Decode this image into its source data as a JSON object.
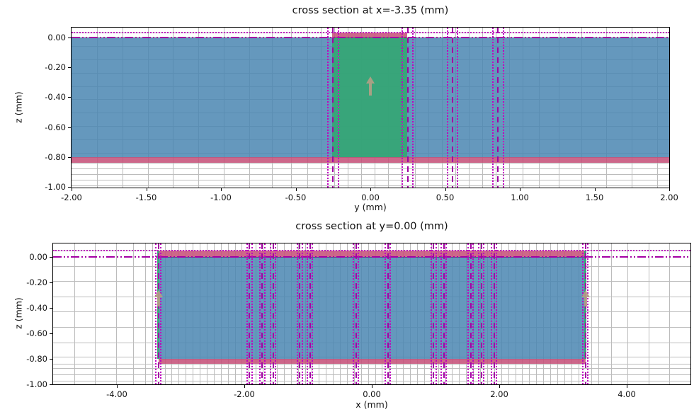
{
  "colors": {
    "grid": "#bcbcbc",
    "magenta_dotted": "#bf00bf",
    "magenta_dashed": "#a300a3",
    "arrow": "rgba(181,160,133,0.9)",
    "tick": "#000000",
    "blue_region": "rgba(74,134,178,0.85)",
    "green_region": "rgba(52,166,116,0.92)",
    "pink_region": "rgba(198,82,122,0.88)"
  },
  "chart_data": [
    {
      "id": "top",
      "type": "area",
      "title": "cross section at x=-3.35 (mm)",
      "xlabel": "y (mm)",
      "ylabel": "z (mm)",
      "xlim": [
        -2.0,
        2.0
      ],
      "zlim": [
        -1.005,
        0.066
      ],
      "grid": "on",
      "xticks": [
        {
          "v": -2.0,
          "label": "-2.00"
        },
        {
          "v": -1.5,
          "label": "-1.50"
        },
        {
          "v": -1.0,
          "label": "-1.00"
        },
        {
          "v": -0.5,
          "label": "-0.50"
        },
        {
          "v": 0.0,
          "label": "0.00"
        },
        {
          "v": 0.5,
          "label": "0.50"
        },
        {
          "v": 1.0,
          "label": "1.00"
        },
        {
          "v": 1.5,
          "label": "1.50"
        },
        {
          "v": 2.0,
          "label": "2.00"
        }
      ],
      "zticks": [
        {
          "v": 0.0,
          "label": "0.00"
        },
        {
          "v": -0.2,
          "label": "-0.20"
        },
        {
          "v": -0.4,
          "label": "-0.40"
        },
        {
          "v": -0.6,
          "label": "-0.60"
        },
        {
          "v": -0.8,
          "label": "-0.80"
        },
        {
          "v": -1.0,
          "label": "-1.00"
        }
      ],
      "grid_x": [
        -1.83,
        -1.66,
        -1.49,
        -1.32,
        -1.15,
        -0.98,
        -0.81,
        -0.66,
        -0.53,
        -0.42,
        -0.33,
        -0.24,
        -0.15,
        -0.06,
        0.03,
        0.12,
        0.21,
        0.3,
        0.39,
        0.48,
        0.57,
        0.66,
        0.75,
        0.84,
        0.93,
        1.02,
        1.13,
        1.26,
        1.41,
        1.58,
        1.75,
        1.92
      ],
      "grid_z": [
        0.033,
        -0.055,
        -0.145,
        -0.235,
        -0.325,
        -0.415,
        -0.505,
        -0.595,
        -0.685,
        -0.775,
        -0.838,
        -0.877,
        -0.915,
        -0.953,
        -0.991
      ],
      "regions": [
        {
          "name": "substrate-blue",
          "x0": -2.0,
          "x1": 2.0,
          "z0": -0.8,
          "z1": 0.0,
          "color": "rgba(74,134,178,0.85)",
          "border_top": "rgba(23,54,84,0.55)"
        },
        {
          "name": "core-green",
          "x0": -0.255,
          "x1": 0.245,
          "z0": -0.8,
          "z1": 0.0,
          "color": "rgba(52,166,116,0.92)",
          "border_top": "rgba(20,110,66,0.6)"
        },
        {
          "name": "metal-pink-top",
          "x0": -0.255,
          "x1": 0.245,
          "z0": 0.0,
          "z1": 0.033,
          "color": "rgba(198,82,122,0.88)"
        },
        {
          "name": "metal-pink-bottom",
          "x0": -2.0,
          "x1": 2.0,
          "z0": -0.84,
          "z1": -0.8,
          "color": "rgba(198,82,122,0.88)"
        }
      ],
      "vlines_dotted": [
        -0.285,
        -0.215,
        0.215,
        0.285,
        0.515,
        0.585,
        0.82,
        0.89
      ],
      "vlines_dashed": [
        -0.25,
        0.25,
        0.55,
        0.855
      ],
      "hlines_dotted": [
        0.033
      ],
      "hlines_dashdotdot": [
        0.0
      ],
      "arrows": [
        {
          "x": 0.0,
          "z_top": -0.26,
          "z_bottom": -0.39
        }
      ]
    },
    {
      "id": "bottom",
      "type": "area",
      "title": "cross section at y=0.00 (mm)",
      "xlabel": "x (mm)",
      "ylabel": "z (mm)",
      "xlim": [
        -5.0,
        5.0
      ],
      "zlim": [
        -1.0,
        0.105
      ],
      "grid": "on",
      "xticks": [
        {
          "v": -4.0,
          "label": "-4.00"
        },
        {
          "v": -2.0,
          "label": "-2.00"
        },
        {
          "v": 0.0,
          "label": "0.00"
        },
        {
          "v": 2.0,
          "label": "2.00"
        },
        {
          "v": 4.0,
          "label": "4.00"
        }
      ],
      "zticks": [
        {
          "v": 0.0,
          "label": "0.00"
        },
        {
          "v": -0.2,
          "label": "-0.20"
        },
        {
          "v": -0.4,
          "label": "-0.40"
        },
        {
          "v": -0.6,
          "label": "-0.60"
        },
        {
          "v": -0.8,
          "label": "-0.80"
        },
        {
          "v": -1.0,
          "label": "-1.00"
        }
      ],
      "grid_x": [
        -4.67,
        -4.34,
        -4.01,
        -3.75,
        -3.56,
        -3.44,
        -3.25,
        -3.14,
        -3.03,
        -2.92,
        -2.81,
        -2.7,
        -2.59,
        -2.48,
        -2.37,
        -2.26,
        -2.15,
        -2.04,
        -1.93,
        -1.82,
        -1.71,
        -1.6,
        -1.49,
        -1.38,
        -1.27,
        -1.16,
        -1.05,
        -0.94,
        -0.83,
        -0.72,
        -0.61,
        -0.5,
        -0.39,
        -0.28,
        -0.17,
        -0.06,
        0.05,
        0.16,
        0.27,
        0.38,
        0.49,
        0.6,
        0.71,
        0.82,
        0.93,
        1.04,
        1.15,
        1.26,
        1.37,
        1.48,
        1.59,
        1.7,
        1.81,
        1.92,
        2.03,
        2.14,
        2.25,
        2.36,
        2.47,
        2.58,
        2.69,
        2.8,
        2.91,
        3.02,
        3.13,
        3.24,
        3.44,
        3.56,
        3.75,
        4.01,
        4.34,
        4.67
      ],
      "grid_z": [
        0.05,
        -0.07,
        -0.19,
        -0.31,
        -0.43,
        -0.55,
        -0.67,
        -0.785,
        -0.84,
        -0.875,
        -0.92,
        -0.97
      ],
      "regions": [
        {
          "name": "substrate-blue",
          "x0": -3.35,
          "x1": 3.35,
          "z0": -0.8,
          "z1": 0.0,
          "color": "rgba(74,134,178,0.85)",
          "border_top": "rgba(23,54,84,0.55)"
        },
        {
          "name": "metal-pink-top",
          "x0": -3.35,
          "x1": 3.35,
          "z0": 0.0,
          "z1": 0.05,
          "color": "rgba(198,82,122,0.88)"
        },
        {
          "name": "metal-pink-bottom",
          "x0": -3.35,
          "x1": 3.35,
          "z0": -0.84,
          "z1": -0.8,
          "color": "rgba(198,82,122,0.88)"
        },
        {
          "name": "core-green-edge-left",
          "x0": -3.372,
          "x1": -3.328,
          "z0": -0.8,
          "z1": 0.05,
          "color": "rgba(52,166,116,0.95)"
        },
        {
          "name": "core-green-edge-right",
          "x0": 3.328,
          "x1": 3.372,
          "z0": -0.8,
          "z1": 0.05,
          "color": "rgba(52,166,116,0.95)"
        }
      ],
      "vlines_dotted": [
        -3.39,
        -3.31,
        -1.96,
        -1.88,
        -1.76,
        -1.68,
        -1.59,
        -1.51,
        -1.17,
        -1.09,
        -1.01,
        -0.93,
        -0.29,
        -0.21,
        0.21,
        0.29,
        0.93,
        1.01,
        1.09,
        1.17,
        1.51,
        1.59,
        1.68,
        1.76,
        1.88,
        1.96,
        3.31,
        3.39
      ],
      "vlines_dashed": [
        -3.35,
        -1.92,
        -1.72,
        -1.55,
        -1.13,
        -0.97,
        -0.25,
        0.25,
        0.97,
        1.13,
        1.55,
        1.72,
        1.92,
        3.35
      ],
      "hlines_dotted": [
        0.05
      ],
      "hlines_dashdotdot": [
        0.0
      ],
      "arrows": [
        {
          "x": -3.35,
          "z_top": -0.26,
          "z_bottom": -0.39
        },
        {
          "x": 3.35,
          "z_top": -0.26,
          "z_bottom": -0.39
        }
      ]
    }
  ]
}
